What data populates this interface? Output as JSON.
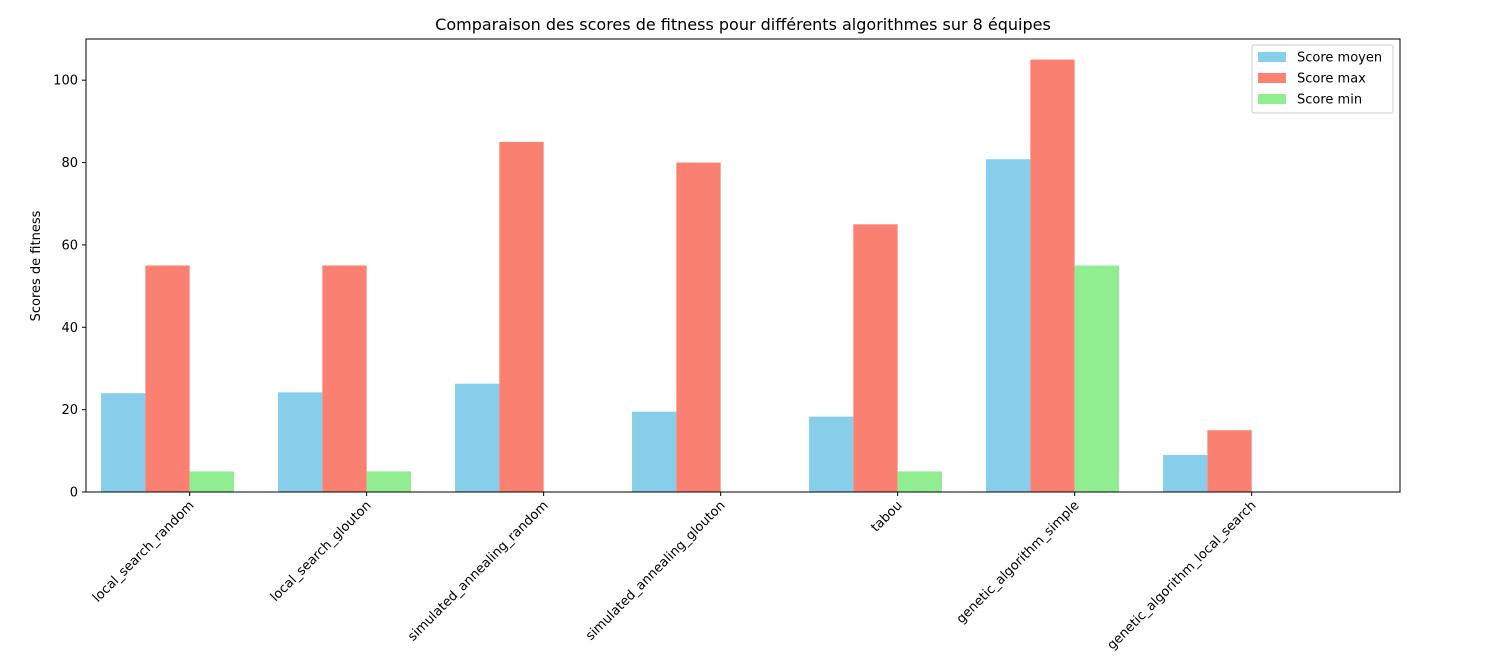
{
  "chart_data": {
    "type": "bar",
    "title": "Comparaison des scores de fitness pour différents algorithmes sur 8 équipes",
    "xlabel": "",
    "ylabel": "Scores de fitness",
    "ylim": [
      0,
      110
    ],
    "yticks": [
      0,
      20,
      40,
      60,
      80,
      100
    ],
    "grid": false,
    "legend_position": "top-right",
    "categories": [
      "local_search_random",
      "local_search_glouton",
      "simulated_annealing_random",
      "simulated_annealing_glouton",
      "tabou",
      "genetic_algorithm_simple",
      "genetic_algorithm_local_search"
    ],
    "series": [
      {
        "name": "Score moyen",
        "color": "#87ceeb",
        "values": [
          24,
          24.2,
          26.3,
          19.5,
          18.3,
          80.8,
          9
        ]
      },
      {
        "name": "Score max",
        "color": "#fa8072",
        "values": [
          55,
          55,
          85,
          80,
          65,
          105,
          15
        ]
      },
      {
        "name": "Score min",
        "color": "#90ee90",
        "values": [
          5,
          5,
          0,
          0,
          5,
          55,
          0
        ]
      }
    ]
  }
}
